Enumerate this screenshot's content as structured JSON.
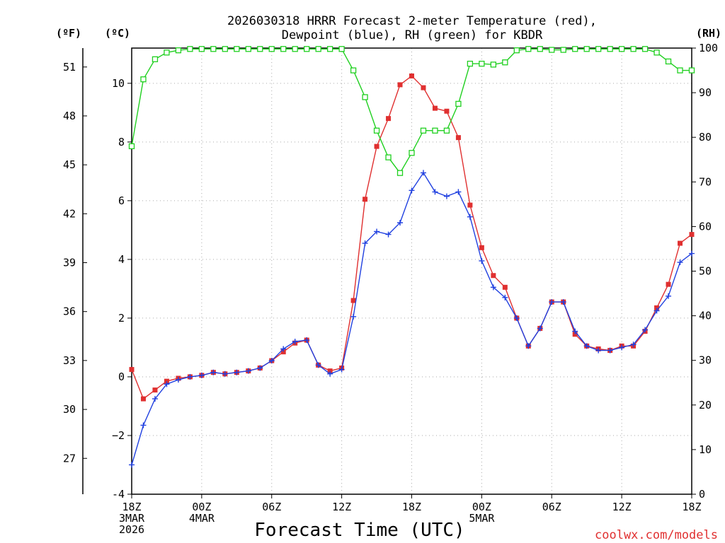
{
  "chart_data": {
    "type": "line",
    "title_line1": "2026030318 HRRR Forecast 2-meter Temperature (red),",
    "title_line2": "Dewpoint (blue), RH (green) for KBDR",
    "xlabel": "Forecast Time (UTC)",
    "credit": "coolwx.com/models",
    "units": {
      "fahrenheit": "(ºF)",
      "celsius": "(ºC)",
      "rh": "(RH)"
    },
    "x_ticks": [
      {
        "hour": 0,
        "lines": [
          "18Z",
          "3MAR",
          "2026"
        ]
      },
      {
        "hour": 6,
        "lines": [
          "00Z",
          "4MAR"
        ]
      },
      {
        "hour": 12,
        "lines": [
          "06Z"
        ]
      },
      {
        "hour": 18,
        "lines": [
          "12Z"
        ]
      },
      {
        "hour": 24,
        "lines": [
          "18Z"
        ]
      },
      {
        "hour": 30,
        "lines": [
          "00Z",
          "5MAR"
        ]
      },
      {
        "hour": 36,
        "lines": [
          "06Z"
        ]
      },
      {
        "hour": 42,
        "lines": [
          "12Z"
        ]
      },
      {
        "hour": 48,
        "lines": [
          "18Z"
        ]
      }
    ],
    "xlim": [
      0,
      48
    ],
    "celsius_axis": {
      "ylim": [
        -4,
        11.2
      ],
      "ticks": [
        "-4",
        "−2",
        "0",
        "2",
        "4",
        "6",
        "8",
        "10"
      ],
      "tick_values": [
        -4,
        -2,
        0,
        2,
        4,
        6,
        8,
        10
      ]
    },
    "fahrenheit_axis": {
      "ticks": [
        "27",
        "30",
        "33",
        "36",
        "39",
        "42",
        "45",
        "48",
        "51"
      ],
      "tick_values": [
        27,
        30,
        33,
        36,
        39,
        42,
        45,
        48,
        51
      ]
    },
    "rh_axis": {
      "ylim": [
        0,
        100
      ],
      "ticks": [
        "0",
        "10",
        "20",
        "30",
        "40",
        "50",
        "60",
        "70",
        "80",
        "90",
        "100"
      ],
      "tick_values": [
        0,
        10,
        20,
        30,
        40,
        50,
        60,
        70,
        80,
        90,
        100
      ]
    },
    "series": [
      {
        "name": "Temperature",
        "unit": "C",
        "color": "#e03030",
        "marker": "filled-square",
        "values": [
          0.25,
          -0.75,
          -0.45,
          -0.15,
          -0.05,
          0.0,
          0.05,
          0.15,
          0.1,
          0.15,
          0.2,
          0.3,
          0.55,
          0.85,
          1.15,
          1.25,
          0.4,
          0.2,
          0.3,
          2.6,
          6.05,
          7.85,
          8.8,
          9.95,
          10.25,
          9.85,
          9.15,
          9.05,
          8.15,
          5.85,
          4.4,
          3.45,
          3.05,
          2.0,
          1.05,
          1.65,
          2.55,
          2.55,
          1.45,
          1.05,
          0.95,
          0.9,
          1.05,
          1.05,
          1.55,
          2.35,
          3.15,
          4.55,
          4.85
        ]
      },
      {
        "name": "Dewpoint",
        "unit": "C",
        "color": "#2040e0",
        "marker": "plus",
        "values": [
          -3.0,
          -1.65,
          -0.75,
          -0.25,
          -0.1,
          0.0,
          0.05,
          0.15,
          0.1,
          0.15,
          0.2,
          0.3,
          0.55,
          0.95,
          1.2,
          1.25,
          0.4,
          0.1,
          0.25,
          2.05,
          4.55,
          4.95,
          4.85,
          5.25,
          6.35,
          6.95,
          6.3,
          6.15,
          6.3,
          5.45,
          3.95,
          3.05,
          2.7,
          2.0,
          1.05,
          1.65,
          2.55,
          2.55,
          1.55,
          1.05,
          0.9,
          0.9,
          1.0,
          1.1,
          1.6,
          2.25,
          2.75,
          3.9,
          4.2
        ]
      },
      {
        "name": "RH",
        "unit": "%",
        "color": "#20d020",
        "marker": "open-square",
        "values": [
          78,
          93,
          97.5,
          99,
          99.5,
          99.8,
          99.8,
          99.8,
          99.8,
          99.8,
          99.8,
          99.8,
          99.8,
          99.8,
          99.8,
          99.8,
          99.8,
          99.8,
          99.8,
          95,
          89,
          81.5,
          75.5,
          72,
          76.5,
          81.5,
          81.5,
          81.5,
          87.5,
          96.5,
          96.5,
          96.3,
          96.8,
          99.5,
          99.8,
          99.8,
          99.6,
          99.6,
          99.8,
          99.8,
          99.8,
          99.8,
          99.8,
          99.8,
          99.8,
          99,
          97,
          95,
          95
        ]
      }
    ]
  }
}
